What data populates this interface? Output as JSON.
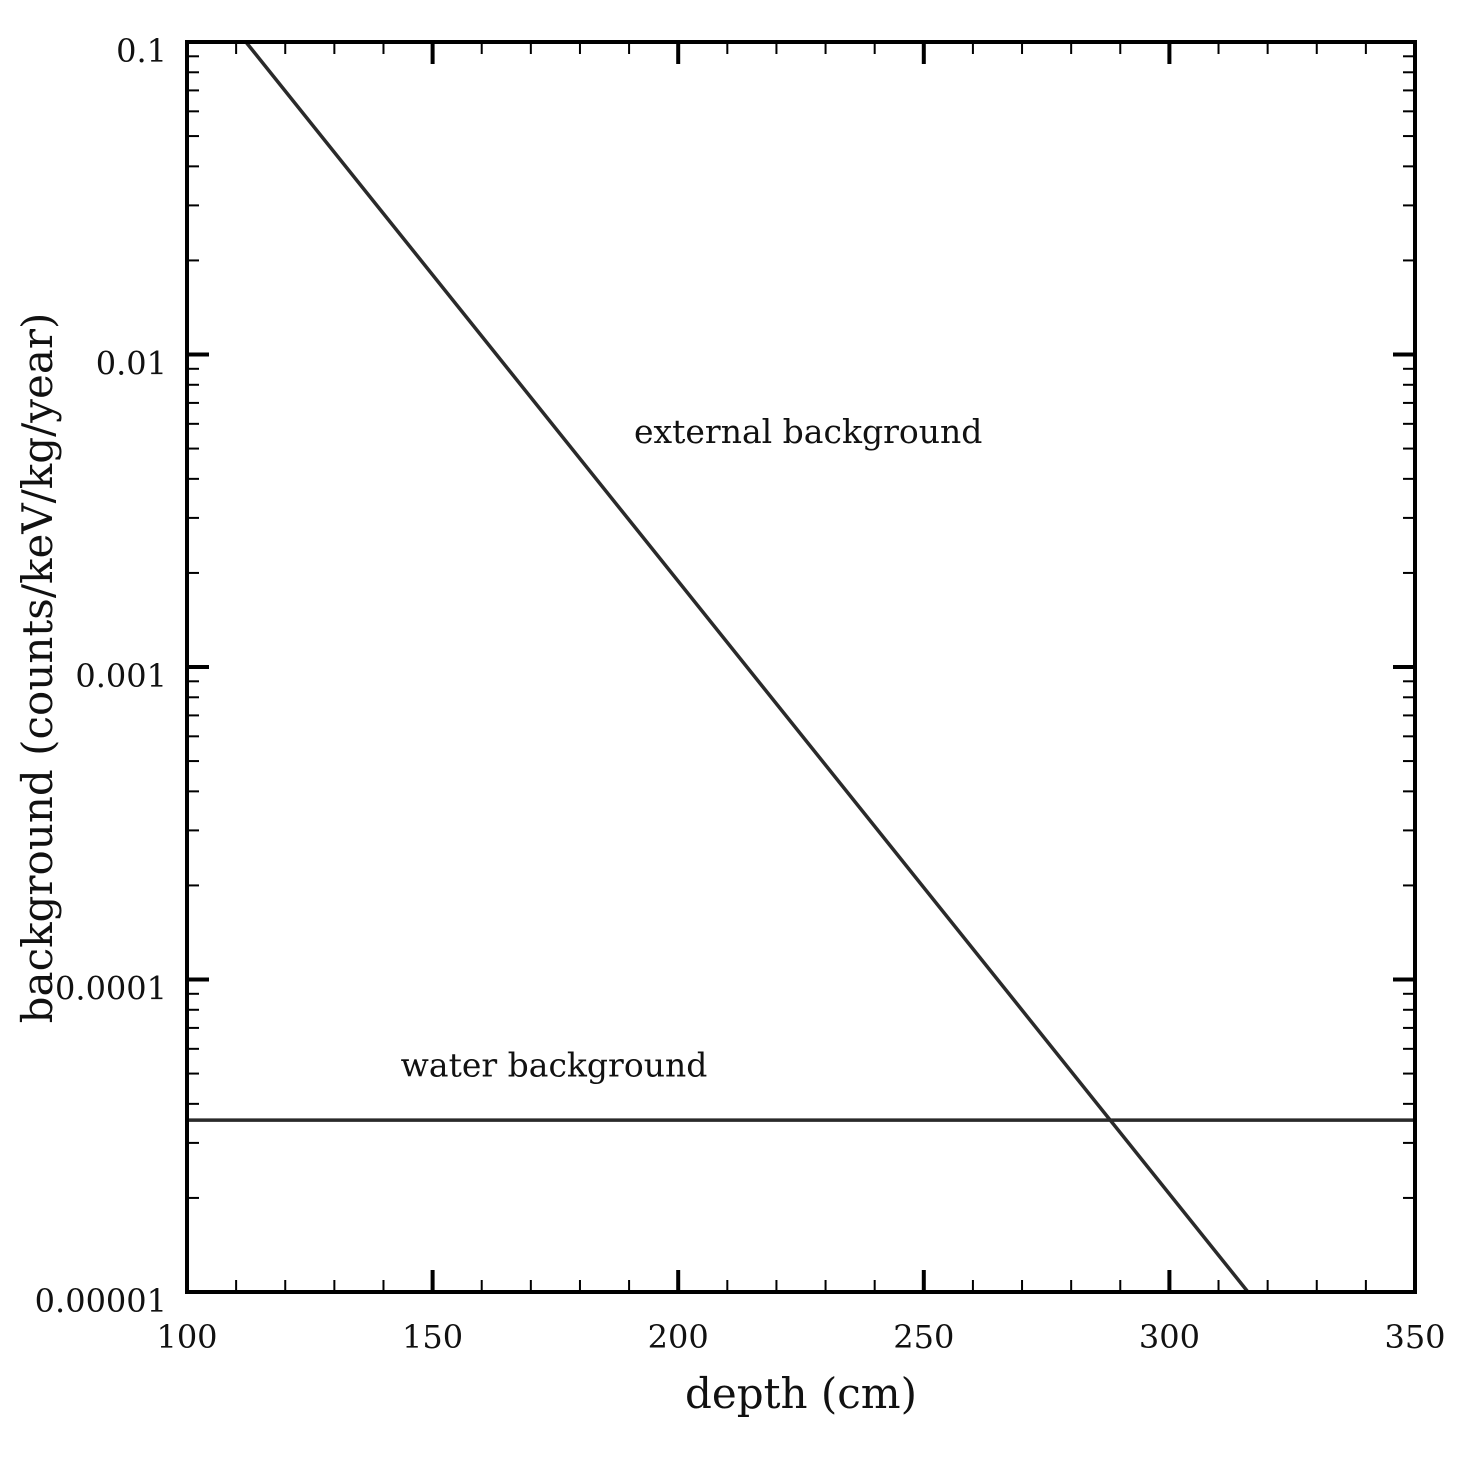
{
  "chart_data": {
    "type": "line",
    "xlabel": "depth (cm)",
    "ylabel": "background (counts/keV/kg/year)",
    "xlim": [
      100,
      350
    ],
    "ylim": [
      1e-05,
      0.1
    ],
    "yscale": "log",
    "grid": false,
    "x_ticks": [
      100,
      150,
      200,
      250,
      300,
      350
    ],
    "x_tick_labels": [
      "100",
      "150",
      "200",
      "250",
      "300",
      "350"
    ],
    "y_ticks": [
      1e-05,
      0.0001,
      0.001,
      0.01,
      0.1
    ],
    "y_tick_labels": [
      "0.00001",
      "0.0001",
      "0.001",
      "0.01",
      "0.1"
    ],
    "series": [
      {
        "name": "external background",
        "x": [
          112,
          316
        ],
        "y": [
          0.1,
          1e-05
        ]
      },
      {
        "name": "water background",
        "x": [
          100,
          350
        ],
        "y": [
          3.55e-05,
          3.55e-05
        ]
      }
    ],
    "annotations": [
      {
        "text": "external background",
        "x": 191,
        "y": 0.0052
      },
      {
        "text": "water background",
        "x": 143.5,
        "y": 4.9e-05
      }
    ],
    "colors": {
      "line": "#2a2a2a",
      "axes": "#000000"
    }
  }
}
